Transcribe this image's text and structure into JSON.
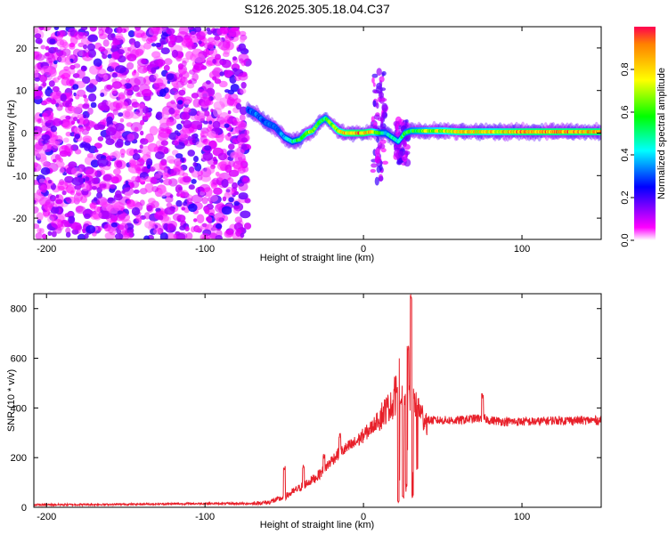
{
  "title": "S126.2025.305.18.04.C37",
  "colors": {
    "snr_line": "#e8202a",
    "ridge_core": "#ff1a2e",
    "colormap": [
      "#ffffff",
      "#ff00ff",
      "#0000ff",
      "#00ffff",
      "#00ff00",
      "#ffff00",
      "#ff0000"
    ]
  },
  "chart_data": [
    {
      "type": "heatmap",
      "panel": "spectrogram",
      "xlabel": "Height of straight line (km)",
      "ylabel": "Frequency (Hz)",
      "xlim": [
        -208,
        150
      ],
      "ylim": [
        -25,
        25
      ],
      "xticks": [
        -200,
        -100,
        0,
        100
      ],
      "yticks": [
        -20,
        -10,
        0,
        10,
        20
      ],
      "colorbar": {
        "label": "Normalized spectral amplitude",
        "range": [
          0,
          1
        ],
        "ticks": [
          "0.0",
          "0.2",
          "0.4",
          "0.6",
          "0.8"
        ]
      },
      "noise_region_x": [
        -208,
        -73
      ],
      "ridge": {
        "x": [
          -73,
          -68,
          -62,
          -56,
          -50,
          -45,
          -40,
          -36,
          -32,
          -28,
          -24,
          -20,
          -16,
          -12,
          -8,
          -4,
          0,
          5,
          10,
          14,
          18,
          22,
          26,
          30,
          35,
          40,
          50,
          60,
          70,
          80,
          90,
          100,
          110,
          120,
          130,
          140,
          150
        ],
        "frequency": [
          5.5,
          4.5,
          2.5,
          1.5,
          -1,
          -2,
          -1.5,
          0,
          0.5,
          2.5,
          3.5,
          2,
          0.5,
          0,
          0,
          0,
          0,
          0.3,
          0,
          0,
          -1,
          -2,
          0,
          0.5,
          0.5,
          0.5,
          0.5,
          0.3,
          0.3,
          0.3,
          0.3,
          0.3,
          0.3,
          0.3,
          0.3,
          0.3,
          0.3
        ],
        "amplitude": [
          0.3,
          0.35,
          0.3,
          0.35,
          0.4,
          0.5,
          0.6,
          0.75,
          0.7,
          0.65,
          0.6,
          0.7,
          0.8,
          0.85,
          0.9,
          0.9,
          0.92,
          0.85,
          0.6,
          0.4,
          0.5,
          0.5,
          0.6,
          0.6,
          0.65,
          0.7,
          0.75,
          0.85,
          0.85,
          0.8,
          0.85,
          0.9,
          0.9,
          0.9,
          0.9,
          0.9,
          0.9
        ]
      },
      "scatter_bursts": [
        {
          "x": 10,
          "f_min": -12,
          "f_max": 15
        },
        {
          "x": 24,
          "f_min": -7,
          "f_max": 3
        }
      ]
    },
    {
      "type": "line",
      "panel": "snr",
      "xlabel": "Height of straight line (km)",
      "ylabel": "SNR (10 * v/v)",
      "xlim": [
        -208,
        150
      ],
      "ylim": [
        0,
        860
      ],
      "xticks": [
        -200,
        -100,
        0,
        100
      ],
      "yticks": [
        0,
        200,
        400,
        600,
        800
      ],
      "series": [
        {
          "x": [
            -208,
            -150,
            -100,
            -70,
            -60,
            -50,
            -45,
            -40,
            -35,
            -30,
            -25,
            -20,
            -15,
            -10,
            -5,
            0,
            5,
            10,
            15,
            20,
            25,
            30,
            35,
            40,
            45,
            60,
            75,
            80,
            90,
            100,
            110,
            120,
            130,
            140,
            150
          ],
          "value": [
            10,
            12,
            15,
            15,
            20,
            40,
            60,
            80,
            100,
            120,
            150,
            190,
            220,
            240,
            260,
            290,
            320,
            360,
            400,
            420,
            440,
            450,
            380,
            350,
            350,
            350,
            360,
            350,
            345,
            345,
            345,
            350,
            350,
            350,
            350
          ]
        }
      ],
      "peaks": [
        {
          "x": -50,
          "value": 170
        },
        {
          "x": -38,
          "value": 175
        },
        {
          "x": -25,
          "value": 215
        },
        {
          "x": -15,
          "value": 300
        },
        {
          "x": 20,
          "value": 535
        },
        {
          "x": 22,
          "value": 600
        },
        {
          "x": 28,
          "value": 650
        },
        {
          "x": 30,
          "value": 855
        },
        {
          "x": 75,
          "value": 460
        }
      ],
      "dips": [
        {
          "x": 22,
          "value": 20
        },
        {
          "x": 25,
          "value": 30
        },
        {
          "x": 27,
          "value": 80
        },
        {
          "x": 31,
          "value": 40
        },
        {
          "x": 34,
          "value": 150
        }
      ]
    }
  ]
}
